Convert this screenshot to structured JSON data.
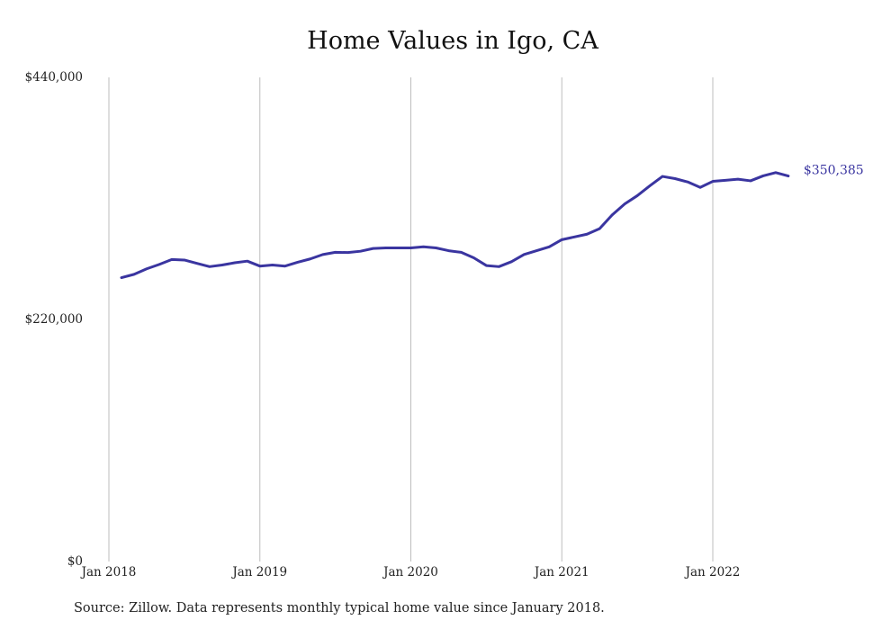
{
  "chart_data": {
    "type": "line",
    "title": "Home Values in Igo, CA",
    "xlabel": "",
    "ylabel": "",
    "ylim": [
      0,
      440000
    ],
    "yticks": [
      {
        "value": 0,
        "label": "$0"
      },
      {
        "value": 220000,
        "label": "$220,000"
      },
      {
        "value": 440000,
        "label": "$440,000"
      }
    ],
    "xticks": [
      {
        "date": "2018-01",
        "label": "Jan 2018"
      },
      {
        "date": "2019-01",
        "label": "Jan 2019"
      },
      {
        "date": "2020-01",
        "label": "Jan 2020"
      },
      {
        "date": "2021-01",
        "label": "Jan 2021"
      },
      {
        "date": "2022-01",
        "label": "Jan 2022"
      }
    ],
    "grid": "vertical",
    "series": [
      {
        "color": "#3a35a0",
        "end_label": "$350,385",
        "x": [
          "2018-02",
          "2018-03",
          "2018-04",
          "2018-05",
          "2018-06",
          "2018-07",
          "2018-08",
          "2018-09",
          "2018-10",
          "2018-11",
          "2018-12",
          "2019-01",
          "2019-02",
          "2019-03",
          "2019-04",
          "2019-05",
          "2019-06",
          "2019-07",
          "2019-08",
          "2019-09",
          "2019-10",
          "2019-11",
          "2019-12",
          "2020-01",
          "2020-02",
          "2020-03",
          "2020-04",
          "2020-05",
          "2020-06",
          "2020-07",
          "2020-08",
          "2020-09",
          "2020-10",
          "2020-11",
          "2020-12",
          "2021-01",
          "2021-02",
          "2021-03",
          "2021-04",
          "2021-05",
          "2021-06",
          "2021-07",
          "2021-08",
          "2021-09",
          "2021-10",
          "2021-11",
          "2021-12",
          "2022-01",
          "2022-02",
          "2022-03",
          "2022-04",
          "2022-05",
          "2022-06",
          "2022-07"
        ],
        "values": [
          258000,
          261000,
          266000,
          270000,
          274500,
          274000,
          271000,
          268000,
          269500,
          271500,
          273000,
          268500,
          269500,
          268500,
          272000,
          275000,
          279000,
          281000,
          280800,
          282000,
          284500,
          285000,
          285000,
          285000,
          286000,
          285000,
          282500,
          281000,
          276000,
          269000,
          268000,
          272500,
          279000,
          282500,
          286000,
          292500,
          295000,
          297500,
          302500,
          315000,
          325000,
          332500,
          341500,
          350000,
          348000,
          345000,
          340000,
          345500,
          346500,
          347500,
          346000,
          350500,
          353500,
          350385
        ]
      }
    ]
  }
}
